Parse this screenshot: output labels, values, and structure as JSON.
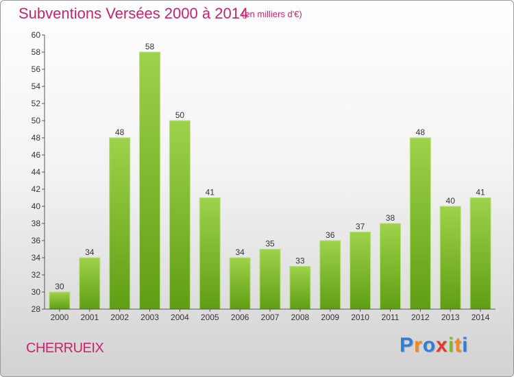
{
  "title": "Subventions Versées 2000 à 2014",
  "unit_note": "(en milliers d'€)",
  "commune": "CHERRUEIX",
  "logo": {
    "letters": [
      "P",
      "r",
      "o",
      "x",
      "i",
      "t",
      "i"
    ],
    "colors": [
      "#2f7fd6",
      "#f08a1c",
      "#2f7fd6",
      "#e23a2e",
      "#7fba2a",
      "#f08a1c",
      "#2f7fd6"
    ]
  },
  "chart_data": {
    "type": "bar",
    "categories": [
      "2000",
      "2001",
      "2002",
      "2003",
      "2004",
      "2005",
      "2006",
      "2007",
      "2008",
      "2009",
      "2010",
      "2011",
      "2012",
      "2013",
      "2014"
    ],
    "values": [
      30,
      34,
      48,
      58,
      50,
      41,
      34,
      35,
      33,
      36,
      37,
      38,
      48,
      40,
      41
    ],
    "data_labels": [
      "30",
      "34",
      "48",
      "58",
      "50",
      "41",
      "34",
      "35",
      "33",
      "36",
      "37",
      "38",
      "48",
      "40",
      "41"
    ],
    "y_ticks": [
      28,
      30,
      32,
      34,
      36,
      38,
      40,
      42,
      44,
      46,
      48,
      50,
      52,
      54,
      56,
      58,
      60
    ],
    "ylim": [
      28,
      60
    ],
    "grid": false,
    "bar_color_top": "#9ed24a",
    "bar_color_bottom": "#5f9e14"
  }
}
